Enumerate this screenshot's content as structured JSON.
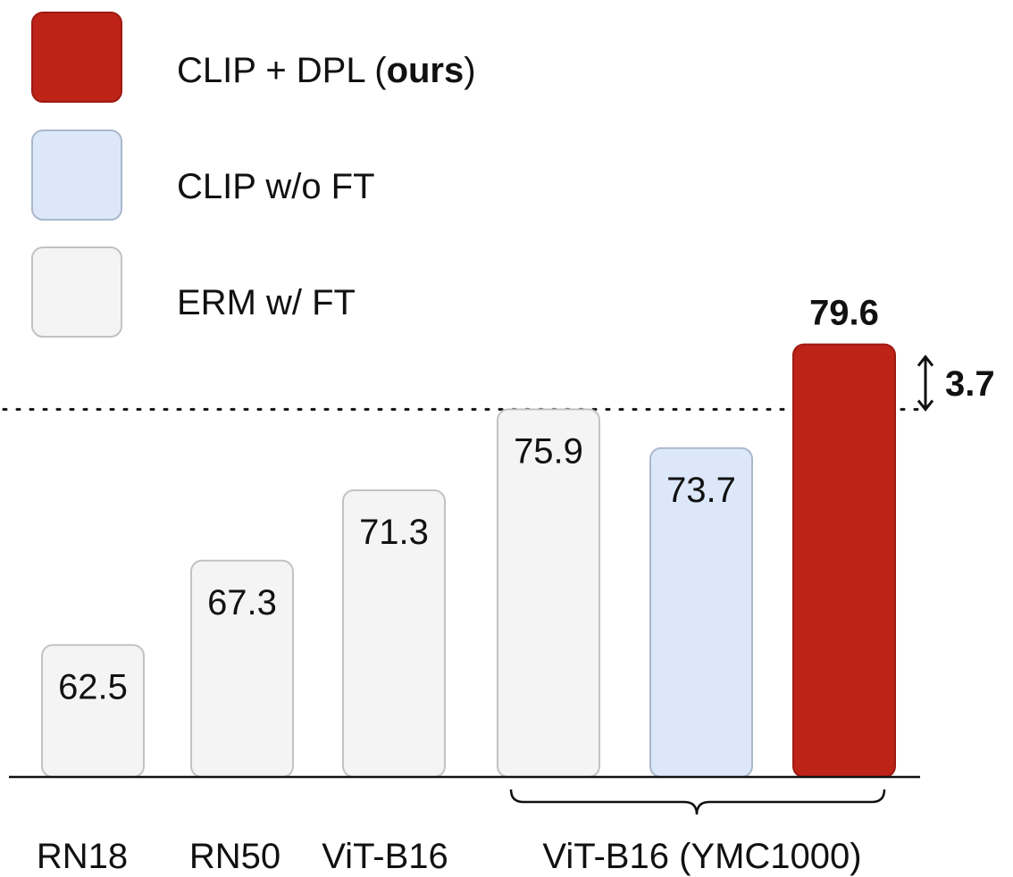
{
  "chart_data": {
    "type": "bar",
    "value_axis_range": [
      55,
      81
    ],
    "grid": false,
    "legend_position": "top-left",
    "categories": [
      "RN18",
      "RN50",
      "ViT-B16",
      "ViT-B16 (YMC1000)"
    ],
    "series": [
      {
        "name": "ERM w/ FT",
        "color": "#f4f4f4",
        "border_color": "#c2c2c2",
        "points": [
          {
            "category": "RN18",
            "value": 62.5
          },
          {
            "category": "RN50",
            "value": 67.3
          },
          {
            "category": "ViT-B16",
            "value": 71.3
          },
          {
            "category": "ViT-B16 (YMC1000)",
            "value": 75.9
          }
        ]
      },
      {
        "name": "CLIP w/o FT",
        "color": "#dce8fa",
        "border_color": "#a9b8cc",
        "points": [
          {
            "category": "ViT-B16 (YMC1000)",
            "value": 73.7
          }
        ]
      },
      {
        "name_parts": [
          "CLIP + DPL (",
          "ours",
          ")"
        ],
        "color": "#be2317",
        "border_color": "#9e1a12",
        "points": [
          {
            "category": "ViT-B16 (YMC1000)",
            "value": 79.6
          }
        ]
      }
    ],
    "reference_line": {
      "value": 75.9,
      "style": "dotted"
    },
    "annotation": {
      "text": "3.7",
      "from": 75.9,
      "to": 79.6
    }
  }
}
